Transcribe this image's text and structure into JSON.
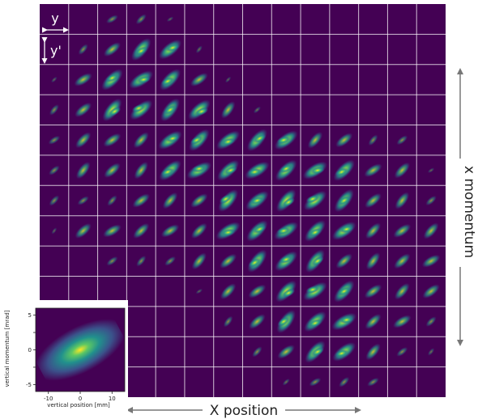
{
  "chart_data": {
    "type": "heatmap",
    "grid": {
      "rows": 13,
      "cols": 14
    },
    "colormap": [
      "#440154",
      "#3b528b",
      "#21908d",
      "#5dc863",
      "#fde725"
    ],
    "cell_intensity": [
      [
        0,
        0,
        1,
        1,
        0.2,
        0,
        0,
        0,
        0,
        0,
        0,
        0,
        0,
        0
      ],
      [
        0,
        1,
        2,
        3,
        3,
        0.4,
        0,
        0,
        0,
        0,
        0,
        0,
        0,
        0
      ],
      [
        0.2,
        2,
        3,
        3,
        3,
        2,
        0.2,
        0,
        0,
        0,
        0,
        0,
        0,
        0
      ],
      [
        1,
        2,
        3,
        3,
        3,
        3,
        2,
        0.4,
        0,
        0,
        0,
        0,
        0,
        0
      ],
      [
        1,
        2,
        2,
        2,
        3,
        3,
        3,
        3,
        3,
        2,
        2,
        1,
        1,
        0
      ],
      [
        1,
        2,
        2,
        2,
        3,
        3,
        3,
        3,
        3,
        3,
        3,
        2,
        2,
        0.2
      ],
      [
        1,
        1,
        1,
        2,
        2,
        2,
        3,
        3,
        3,
        3,
        3,
        2,
        2,
        1
      ],
      [
        0.2,
        2,
        2,
        2,
        2,
        2,
        3,
        3,
        3,
        3,
        3,
        2,
        2,
        2
      ],
      [
        0,
        0,
        1,
        1,
        1,
        2,
        2,
        3,
        3,
        3,
        2,
        2,
        2,
        2
      ],
      [
        0,
        0,
        0,
        0,
        0,
        0.2,
        2,
        2,
        3,
        3,
        3,
        2,
        2,
        2
      ],
      [
        0,
        0,
        0,
        0,
        0,
        0,
        1,
        2,
        3,
        3,
        3,
        2,
        2,
        1
      ],
      [
        0,
        0,
        0,
        0,
        0,
        0,
        0,
        1,
        2,
        3,
        3,
        2,
        1,
        0.4
      ],
      [
        0,
        0,
        0,
        0,
        0,
        0,
        0,
        0,
        0.4,
        1,
        1,
        1,
        0,
        0
      ]
    ],
    "cell_legend": {
      "horizontal": "y",
      "vertical": "y'"
    },
    "xlabel": "X position",
    "ylabel": "x momentum",
    "inset": {
      "type": "heatmap",
      "xlabel": "vertical position [mm]",
      "ylabel": "vertical momentum [mrad]",
      "xticks": [
        -10,
        0,
        10
      ],
      "yticks": [
        5,
        2.5,
        0,
        -2.5,
        -5
      ],
      "xlim": [
        -14,
        14
      ],
      "ylim": [
        -6,
        6
      ]
    }
  }
}
